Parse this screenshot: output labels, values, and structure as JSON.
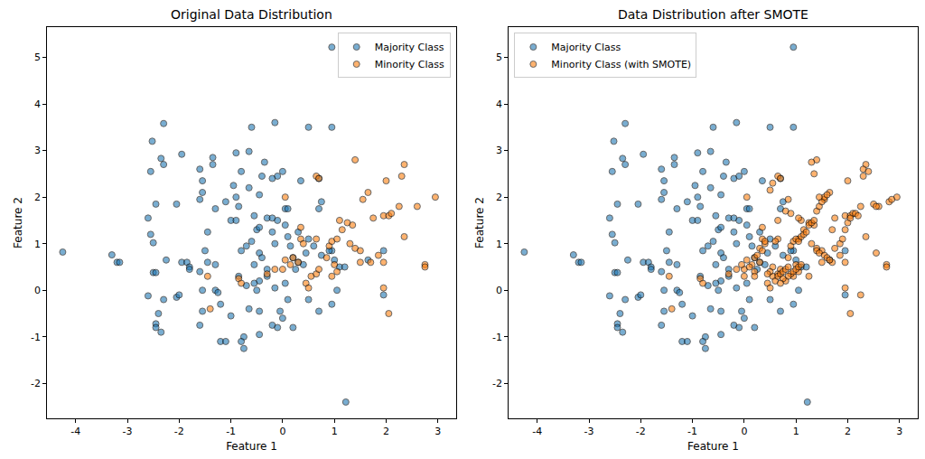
{
  "chart_data": [
    {
      "type": "scatter",
      "title": "Original Data Distribution",
      "x_label": "Feature 1",
      "y_label": "Feature 2",
      "xlim": [
        -4.55,
        3.35
      ],
      "ylim": [
        -2.75,
        5.65
      ],
      "xticks": [
        -4,
        -3,
        -2,
        -1,
        0,
        1,
        2,
        3
      ],
      "yticks": [
        -2,
        -1,
        0,
        1,
        2,
        3,
        4,
        5
      ],
      "grid": false,
      "legend": "upper right",
      "marker": "circle",
      "series": [
        {
          "name": "Majority Class",
          "color": "#1f77b4",
          "x": [
            -4.25,
            -3.3,
            -3.2,
            -3.15,
            0.95,
            1.22,
            -2.3,
            -2.52,
            -2.35,
            -2.3,
            -2.55,
            -1.95,
            -2.6,
            -2.45,
            -2.55,
            -2.5,
            -2.25,
            -2.5,
            -2.45,
            -2.6,
            -2.3,
            -2.4,
            -2.45,
            -2.45,
            -2.35,
            -2.05,
            -2.0,
            -1.95,
            -1.85,
            -1.8,
            -1.8,
            -2.05,
            -1.6,
            -1.55,
            -1.55,
            -1.6,
            -1.35,
            -1.35,
            -1.3,
            -1.45,
            -1.5,
            -1.45,
            -1.3,
            -1.6,
            -1.55,
            -1.55,
            -1.6,
            -1.3,
            -1.25,
            -1.2,
            -1.2,
            -1.1,
            -1.0,
            -0.75,
            -0.75,
            -0.8,
            -1.1,
            -1.0,
            -0.9,
            -0.9,
            -0.95,
            -0.85,
            -0.9,
            -0.8,
            -0.65,
            -0.6,
            -0.65,
            -0.55,
            -0.5,
            -0.45,
            -0.6,
            -0.7,
            -0.8,
            -0.85,
            -0.7,
            -0.5,
            -0.45,
            -0.65,
            -0.45,
            -0.4,
            -0.35,
            -0.3,
            -0.2,
            -0.1,
            -0.2,
            -0.15,
            -0.45,
            -0.4,
            -0.55,
            -0.3,
            -0.3,
            -0.45,
            -0.55,
            -0.15,
            -0.05,
            0.0,
            -0.2,
            -0.45,
            -0.1,
            0.2,
            0.1,
            0.05,
            -0.2,
            -0.15,
            0.0,
            -0.1,
            0.05,
            0.1,
            0.05,
            0.1,
            0.15,
            0.2,
            0.3,
            0.25,
            0.45,
            0.5,
            0.3,
            0.5,
            0.35,
            0.7,
            0.95,
            0.75,
            0.7,
            0.75,
            0.7,
            0.95,
            0.5,
            1.05,
            1.1,
            1.0,
            0.95,
            1.2,
            1.65,
            1.95,
            1.95,
            0.4,
            0.6,
            0.9
          ],
          "values": [
            0.82,
            0.76,
            0.6,
            0.6,
            5.22,
            -2.4,
            3.58,
            3.2,
            2.83,
            2.7,
            2.55,
            2.92,
            1.55,
            1.85,
            1.2,
            1.02,
            0.65,
            0.38,
            0.38,
            -0.12,
            -0.2,
            -0.5,
            -0.72,
            -0.8,
            -0.9,
            -0.15,
            -0.1,
            0.6,
            0.6,
            0.5,
            0.45,
            1.85,
            2.6,
            2.35,
            2.1,
            1.95,
            2.85,
            2.7,
            1.75,
            1.25,
            0.85,
            0.6,
            0.55,
            0.4,
            0.0,
            -0.45,
            -0.75,
            0.0,
            -0.05,
            -0.3,
            -1.1,
            -1.1,
            -0.55,
            -1.0,
            -1.25,
            -1.1,
            1.9,
            1.5,
            1.5,
            2.0,
            2.25,
            1.8,
            2.95,
            2.55,
            2.98,
            3.5,
            2.2,
            1.6,
            1.3,
            1.35,
            1.05,
            0.95,
            0.85,
            0.3,
            0.1,
            0.0,
            -0.45,
            -0.4,
            2.05,
            2.45,
            2.75,
            1.55,
            1.55,
            1.5,
            1.25,
            1.0,
            0.8,
            0.7,
            0.55,
            0.45,
            0.3,
            0.2,
            0.15,
            0.05,
            -0.45,
            -0.6,
            -0.75,
            -0.95,
            -0.8,
            -0.8,
            -0.2,
            0.15,
            2.4,
            3.6,
            2.55,
            2.45,
            1.75,
            1.75,
            1.4,
            1.15,
            0.95,
            0.7,
            0.6,
            0.45,
            0.8,
            1.1,
            1.25,
            3.5,
            2.35,
            2.4,
            3.5,
            1.9,
            1.75,
            0.75,
            -0.45,
            -0.3,
            -0.2,
            0.0,
            0.5,
            0.65,
            0.85,
            0.5,
            0.65,
            -0.1,
            0.85,
            0.55,
            0.95,
            0.85
          ]
        },
        {
          "name": "Minority Class",
          "color": "#ff7f0e",
          "x": [
            0.05,
            0.65,
            0.7,
            0.65,
            0.35,
            0.35,
            0.4,
            0.2,
            0.3,
            0.15,
            0.05,
            0.0,
            -0.15,
            -0.3,
            -0.85,
            -0.8,
            -1.45,
            -1.4,
            0.45,
            0.5,
            0.55,
            0.65,
            0.7,
            0.85,
            0.9,
            0.95,
            1.05,
            1.15,
            1.1,
            1.25,
            1.35,
            1.4,
            1.55,
            1.65,
            1.75,
            1.3,
            1.4,
            1.5,
            1.5,
            1.0,
            1.05,
            0.95,
            1.7,
            1.85,
            1.95,
            1.95,
            2.05,
            2.1,
            2.0,
            2.25,
            2.3,
            2.35,
            2.6,
            2.35,
            2.75,
            2.75,
            2.95,
            1.95,
            2.05
          ],
          "values": [
            2.0,
            2.45,
            2.4,
            1.1,
            1.35,
            1.1,
            1.0,
            0.7,
            0.6,
            0.55,
            0.65,
            0.45,
            0.45,
            0.35,
            0.25,
            0.15,
            0.3,
            -0.4,
            0.15,
            0.05,
            0.3,
            0.35,
            0.45,
            0.7,
            0.95,
            1.05,
            1.1,
            1.3,
            1.5,
            1.45,
            1.4,
            2.8,
            1.95,
            2.1,
            1.55,
            1.0,
            0.9,
            0.85,
            0.6,
            0.55,
            0.4,
            0.3,
            0.6,
            0.75,
            0.6,
            1.6,
            1.6,
            1.65,
            2.35,
            1.8,
            2.45,
            2.7,
            1.8,
            1.15,
            0.55,
            0.5,
            2.0,
            0.05,
            -0.5
          ]
        }
      ]
    },
    {
      "type": "scatter",
      "title": "Data Distribution after SMOTE",
      "x_label": "Feature 1",
      "y_label": "Feature 2",
      "xlim": [
        -4.55,
        3.35
      ],
      "ylim": [
        -2.75,
        5.65
      ],
      "xticks": [
        -4,
        -3,
        -2,
        -1,
        0,
        1,
        2,
        3
      ],
      "yticks": [
        -2,
        -1,
        0,
        1,
        2,
        3,
        4,
        5
      ],
      "grid": false,
      "legend": "upper left",
      "marker": "circle",
      "series": [
        {
          "name": "Majority Class",
          "color": "#1f77b4",
          "x": [
            -4.25,
            -3.3,
            -3.2,
            -3.15,
            0.95,
            1.22,
            -2.3,
            -2.52,
            -2.35,
            -2.3,
            -2.55,
            -1.95,
            -2.6,
            -2.45,
            -2.55,
            -2.5,
            -2.25,
            -2.5,
            -2.45,
            -2.6,
            -2.3,
            -2.4,
            -2.45,
            -2.45,
            -2.35,
            -2.05,
            -2.0,
            -1.95,
            -1.85,
            -1.8,
            -1.8,
            -2.05,
            -1.6,
            -1.55,
            -1.55,
            -1.6,
            -1.35,
            -1.35,
            -1.3,
            -1.45,
            -1.5,
            -1.45,
            -1.3,
            -1.6,
            -1.55,
            -1.55,
            -1.6,
            -1.3,
            -1.25,
            -1.2,
            -1.2,
            -1.1,
            -1.0,
            -0.75,
            -0.75,
            -0.8,
            -1.1,
            -1.0,
            -0.9,
            -0.9,
            -0.95,
            -0.85,
            -0.9,
            -0.8,
            -0.65,
            -0.6,
            -0.65,
            -0.55,
            -0.5,
            -0.45,
            -0.6,
            -0.7,
            -0.8,
            -0.85,
            -0.7,
            -0.5,
            -0.45,
            -0.65,
            -0.45,
            -0.4,
            -0.35,
            -0.3,
            -0.2,
            -0.1,
            -0.2,
            -0.15,
            -0.45,
            -0.4,
            -0.55,
            -0.3,
            -0.3,
            -0.45,
            -0.55,
            -0.15,
            -0.05,
            0.0,
            -0.2,
            -0.45,
            -0.1,
            0.2,
            0.1,
            0.05,
            -0.2,
            -0.15,
            0.0,
            -0.1,
            0.05,
            0.1,
            0.05,
            0.1,
            0.15,
            0.2,
            0.3,
            0.25,
            0.45,
            0.5,
            0.3,
            0.5,
            0.35,
            0.7,
            0.95,
            0.75,
            0.7,
            0.75,
            0.7,
            0.95,
            0.5,
            1.05,
            1.1,
            1.0,
            0.95,
            1.2,
            1.65,
            1.95,
            1.95,
            0.4,
            0.6,
            0.9
          ],
          "values": [
            0.82,
            0.76,
            0.6,
            0.6,
            5.22,
            -2.4,
            3.58,
            3.2,
            2.83,
            2.7,
            2.55,
            2.92,
            1.55,
            1.85,
            1.2,
            1.02,
            0.65,
            0.38,
            0.38,
            -0.12,
            -0.2,
            -0.5,
            -0.72,
            -0.8,
            -0.9,
            -0.15,
            -0.1,
            0.6,
            0.6,
            0.5,
            0.45,
            1.85,
            2.6,
            2.35,
            2.1,
            1.95,
            2.85,
            2.7,
            1.75,
            1.25,
            0.85,
            0.6,
            0.55,
            0.4,
            0.0,
            -0.45,
            -0.75,
            0.0,
            -0.05,
            -0.3,
            -1.1,
            -1.1,
            -0.55,
            -1.0,
            -1.25,
            -1.1,
            1.9,
            1.5,
            1.5,
            2.0,
            2.25,
            1.8,
            2.95,
            2.55,
            2.98,
            3.5,
            2.2,
            1.6,
            1.3,
            1.35,
            1.05,
            0.95,
            0.85,
            0.3,
            0.1,
            0.0,
            -0.45,
            -0.4,
            2.05,
            2.45,
            2.75,
            1.55,
            1.55,
            1.5,
            1.25,
            1.0,
            0.8,
            0.7,
            0.55,
            0.45,
            0.3,
            0.2,
            0.15,
            0.05,
            -0.45,
            -0.6,
            -0.75,
            -0.95,
            -0.8,
            -0.8,
            -0.2,
            0.15,
            2.4,
            3.6,
            2.55,
            2.45,
            1.75,
            1.75,
            1.4,
            1.15,
            0.95,
            0.7,
            0.6,
            0.45,
            0.8,
            1.1,
            1.25,
            3.5,
            2.35,
            2.4,
            3.5,
            1.9,
            1.75,
            0.75,
            -0.45,
            -0.3,
            -0.2,
            0.0,
            0.5,
            0.65,
            0.85,
            0.5,
            0.65,
            -0.1,
            0.85,
            0.55,
            0.95,
            0.85
          ]
        },
        {
          "name": "Minority Class (with SMOTE)",
          "color": "#ff7f0e",
          "x": [
            0.05,
            0.65,
            0.7,
            0.65,
            0.35,
            0.35,
            0.4,
            0.2,
            0.3,
            0.15,
            0.05,
            0.0,
            -0.15,
            -0.3,
            -0.85,
            -0.8,
            -1.45,
            -1.4,
            0.45,
            0.5,
            0.55,
            0.65,
            0.7,
            0.85,
            0.9,
            0.95,
            1.05,
            1.15,
            1.1,
            1.25,
            1.35,
            1.4,
            1.55,
            1.65,
            1.75,
            1.3,
            1.4,
            1.5,
            1.5,
            1.0,
            1.05,
            0.95,
            1.7,
            1.85,
            1.95,
            1.95,
            2.05,
            2.1,
            2.0,
            2.25,
            2.3,
            2.35,
            2.6,
            2.35,
            2.75,
            2.75,
            2.95,
            1.95,
            2.05,
            0.6,
            0.65,
            0.7,
            0.75,
            0.8,
            0.85,
            0.9,
            0.95,
            1.0,
            1.05,
            1.1,
            0.85,
            0.8,
            0.75,
            0.7,
            1.0,
            1.05,
            1.1,
            1.15,
            1.2,
            1.25,
            1.3,
            1.35,
            1.4,
            1.45,
            1.5,
            1.55,
            1.6,
            1.45,
            1.4,
            1.45,
            1.55,
            1.6,
            1.65,
            1.75,
            1.85,
            1.9,
            1.95,
            2.0,
            2.05,
            2.15,
            2.2,
            1.7,
            2.3,
            2.4,
            2.5,
            2.55,
            2.8,
            2.85,
            0.25,
            0.3,
            0.4,
            0.35,
            0.55,
            0.5,
            0.45,
            0.2,
            0.1,
            -0.05,
            0.0,
            0.2,
            0.6,
            0.65,
            0.8,
            0.85,
            0.9,
            1.35,
            1.3,
            0.55,
            0.5,
            1.05,
            1.25,
            2.25,
            2.55
          ],
          "values": [
            2.0,
            2.45,
            2.4,
            1.1,
            1.35,
            1.1,
            1.0,
            0.7,
            0.6,
            0.55,
            0.65,
            0.45,
            0.45,
            0.35,
            0.25,
            0.15,
            0.3,
            -0.4,
            0.15,
            0.05,
            0.3,
            0.35,
            0.45,
            0.7,
            0.95,
            1.05,
            1.1,
            1.3,
            1.5,
            1.45,
            1.4,
            2.8,
            1.95,
            2.1,
            1.55,
            1.0,
            0.9,
            0.85,
            0.6,
            0.55,
            0.4,
            0.3,
            0.6,
            0.75,
            0.6,
            1.6,
            1.6,
            1.65,
            2.35,
            1.8,
            2.45,
            2.7,
            1.8,
            1.15,
            0.55,
            0.5,
            2.0,
            0.05,
            -0.5,
            0.2,
            0.3,
            0.35,
            0.4,
            0.45,
            0.5,
            0.35,
            0.4,
            0.45,
            0.5,
            0.55,
            0.3,
            0.2,
            0.25,
            0.15,
            1.1,
            1.05,
            1.15,
            1.2,
            1.25,
            1.4,
            1.45,
            1.5,
            1.7,
            1.8,
            1.9,
            2.0,
            2.05,
            2.0,
            0.85,
            0.8,
            0.75,
            0.7,
            0.65,
            0.9,
            1.0,
            1.1,
            1.3,
            1.45,
            1.55,
            1.65,
            1.6,
            1.3,
            2.6,
            2.55,
            1.85,
            1.8,
            1.9,
            1.95,
            0.75,
            0.9,
            1.05,
            0.85,
            0.5,
            0.4,
            0.35,
            0.4,
            0.5,
            0.55,
            0.3,
            0.3,
            1.05,
            1.5,
            1.7,
            1.95,
            1.65,
            2.5,
            2.75,
            2.3,
            2.15,
            1.55,
            0.3,
            -0.1,
            0.8
          ]
        }
      ]
    }
  ]
}
